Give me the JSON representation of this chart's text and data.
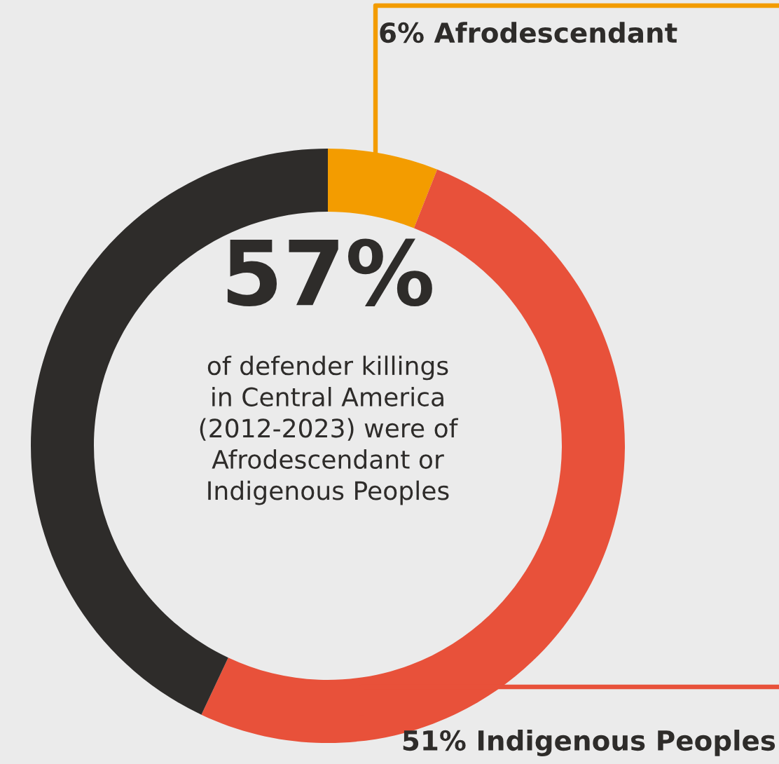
{
  "chart_data": {
    "type": "donut",
    "categories": [
      "Afrodescendant",
      "Indigenous Peoples",
      null
    ],
    "values": [
      6,
      51,
      43
    ],
    "colors": [
      "#f39c00",
      "#e8513a",
      "#2e2c2a"
    ],
    "value_labels": [
      "6%",
      "51%",
      null
    ],
    "annotations": [
      "57%",
      "of defender killings\nin Central America\n(2012-2023) were of\nAfrodescendant or\nIndigenous Peoples"
    ],
    "legend": false
  }
}
